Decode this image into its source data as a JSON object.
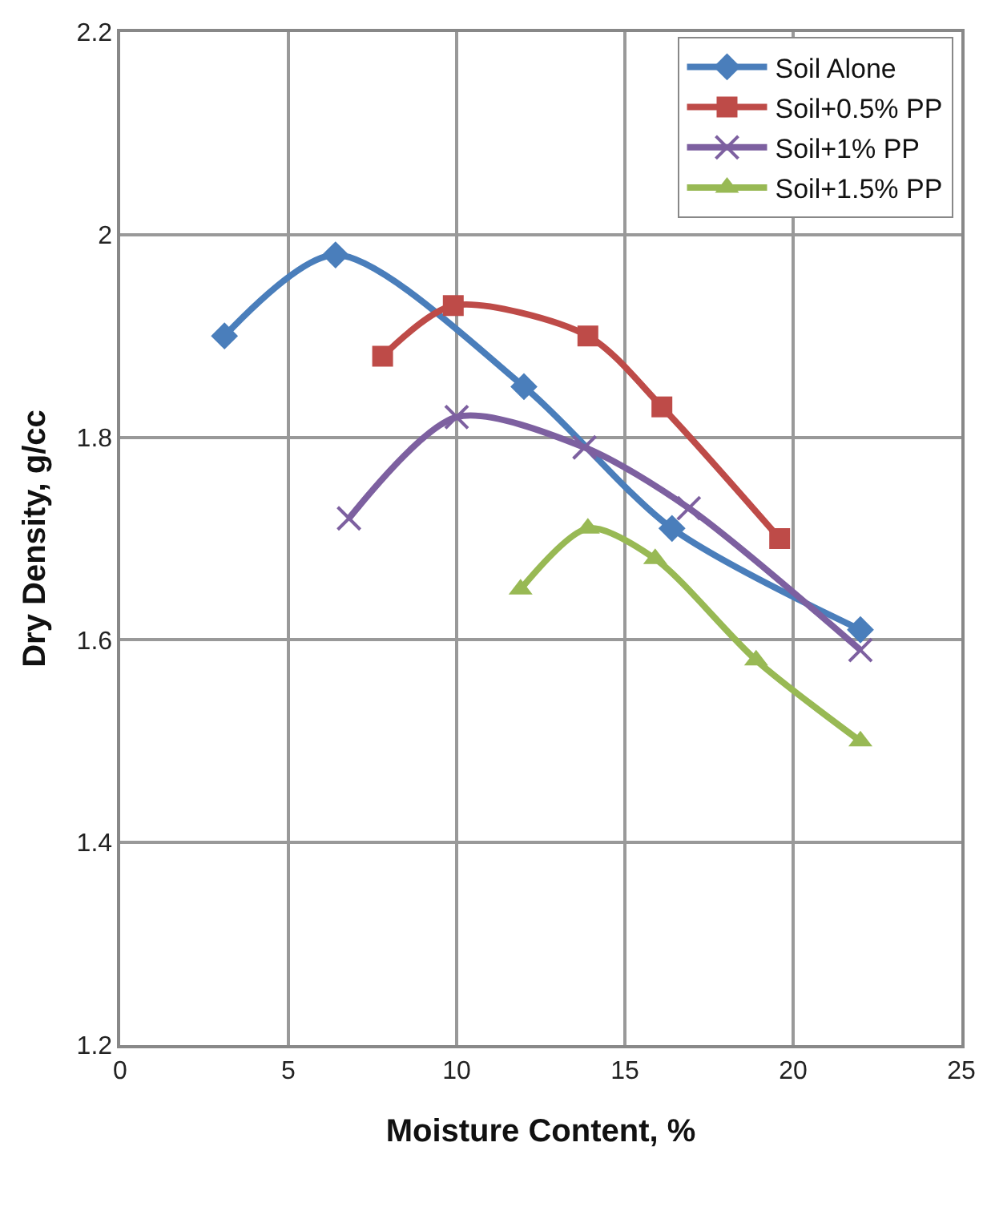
{
  "chart_data": {
    "type": "line",
    "xlabel": "Moisture Content, %",
    "ylabel": "Dry Density, g/cc",
    "xlim": [
      0,
      25
    ],
    "xticks": [
      0,
      5,
      10,
      15,
      20,
      25
    ],
    "ylim": [
      1.2,
      2.2
    ],
    "yticks": [
      1.2,
      1.4,
      1.6,
      1.8,
      2,
      2.2
    ],
    "grid": true,
    "legend": "top right",
    "line_style": "solid",
    "series": [
      {
        "name": "Soil Alone",
        "color": "#4a7ebb",
        "marker": "diamond",
        "x": [
          3.1,
          6.4,
          12,
          16.4,
          22
        ],
        "values": [
          1.9,
          1.98,
          1.85,
          1.71,
          1.61
        ]
      },
      {
        "name": "Soil+0.5% PP",
        "color": "#be4b48",
        "marker": "square",
        "x": [
          7.8,
          9.9,
          13.9,
          16.1,
          19.6
        ],
        "values": [
          1.88,
          1.93,
          1.9,
          1.83,
          1.7
        ]
      },
      {
        "name": "Soil+1% PP",
        "color": "#7d60a0",
        "marker": "cross",
        "x": [
          6.8,
          10,
          13.8,
          16.9,
          22
        ],
        "values": [
          1.72,
          1.82,
          1.79,
          1.73,
          1.59
        ]
      },
      {
        "name": "Soil+1.5% PP",
        "color": "#98b954",
        "marker": "triangle",
        "x": [
          11.9,
          13.9,
          15.9,
          18.9,
          22
        ],
        "values": [
          1.65,
          1.71,
          1.68,
          1.58,
          1.5
        ]
      }
    ]
  }
}
